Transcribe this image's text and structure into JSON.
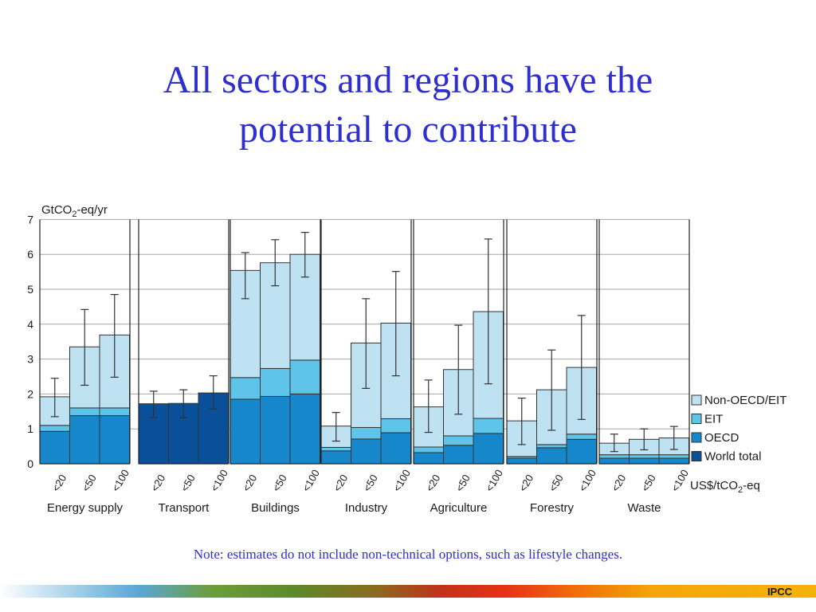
{
  "slide": {
    "title_line1": "All sectors and regions have the",
    "title_line2": "potential to contribute",
    "note": "Note: estimates do not include non-technical options, such as lifestyle changes.",
    "footer": "IPCC"
  },
  "chart_data": {
    "type": "bar",
    "stacked": true,
    "ylabel": "GtCO2-eq/yr",
    "xunit_label": "US$/tCO2-eq",
    "ylim": [
      0,
      7
    ],
    "yticks": [
      "0",
      "1",
      "2",
      "3",
      "4",
      "5",
      "6",
      "7"
    ],
    "grid": true,
    "legend_position": "right",
    "legend": [
      {
        "name": "Non-OECD/EIT",
        "color": "#bfe2f3"
      },
      {
        "name": "EIT",
        "color": "#5ec4ea"
      },
      {
        "name": "OECD",
        "color": "#1787cc"
      },
      {
        "name": "World total",
        "color": "#0a4f9a"
      }
    ],
    "colors": {
      "nonoecd": "#bfe2f3",
      "eit": "#5ec4ea",
      "oecd": "#1787cc",
      "world": "#0a4f9a"
    },
    "sectors": [
      {
        "name": "Energy supply",
        "bars": [
          {
            "label": "<20",
            "oecd": 0.93,
            "eit": 0.17,
            "nonoecd": 0.82,
            "err": [
              1.35,
              2.45
            ]
          },
          {
            "label": "<50",
            "oecd": 1.38,
            "eit": 0.22,
            "nonoecd": 1.75,
            "err": [
              2.25,
              4.42
            ]
          },
          {
            "label": "<100",
            "oecd": 1.38,
            "eit": 0.22,
            "nonoecd": 2.09,
            "err": [
              2.48,
              4.85
            ]
          }
        ]
      },
      {
        "name": "Transport",
        "bars": [
          {
            "label": "<20",
            "world": 1.72,
            "err": [
              1.32,
              2.08
            ]
          },
          {
            "label": "<50",
            "world": 1.73,
            "err": [
              1.32,
              2.12
            ]
          },
          {
            "label": "<100",
            "world": 2.03,
            "err": [
              1.57,
              2.52
            ]
          }
        ]
      },
      {
        "name": "Buildings",
        "bars": [
          {
            "label": "<20",
            "oecd": 1.85,
            "eit": 0.62,
            "nonoecd": 3.07,
            "err": [
              4.73,
              6.05
            ]
          },
          {
            "label": "<50",
            "oecd": 1.93,
            "eit": 0.8,
            "nonoecd": 3.03,
            "err": [
              5.1,
              6.42
            ]
          },
          {
            "label": "<100",
            "oecd": 2.0,
            "eit": 0.97,
            "nonoecd": 3.03,
            "err": [
              5.35,
              6.63
            ]
          }
        ]
      },
      {
        "name": "Industry",
        "bars": [
          {
            "label": "<20",
            "oecd": 0.37,
            "eit": 0.1,
            "nonoecd": 0.61,
            "err": [
              0.65,
              1.47
            ]
          },
          {
            "label": "<50",
            "oecd": 0.71,
            "eit": 0.33,
            "nonoecd": 2.42,
            "err": [
              2.16,
              4.73
            ]
          },
          {
            "label": "<100",
            "oecd": 0.89,
            "eit": 0.4,
            "nonoecd": 2.74,
            "err": [
              2.52,
              5.51
            ]
          }
        ]
      },
      {
        "name": "Agriculture",
        "bars": [
          {
            "label": "<20",
            "oecd": 0.32,
            "eit": 0.16,
            "nonoecd": 1.15,
            "err": [
              0.9,
              2.4
            ]
          },
          {
            "label": "<50",
            "oecd": 0.53,
            "eit": 0.27,
            "nonoecd": 1.9,
            "err": [
              1.42,
              3.97
            ]
          },
          {
            "label": "<100",
            "oecd": 0.87,
            "eit": 0.43,
            "nonoecd": 3.06,
            "err": [
              2.29,
              6.44
            ]
          }
        ]
      },
      {
        "name": "Forestry",
        "bars": [
          {
            "label": "<20",
            "oecd": 0.16,
            "eit": 0.05,
            "nonoecd": 1.02,
            "err": [
              0.55,
              1.88
            ]
          },
          {
            "label": "<50",
            "oecd": 0.46,
            "eit": 0.09,
            "nonoecd": 1.57,
            "err": [
              0.96,
              3.26
            ]
          },
          {
            "label": "<100",
            "oecd": 0.7,
            "eit": 0.15,
            "nonoecd": 1.91,
            "err": [
              1.27,
              4.25
            ]
          }
        ]
      },
      {
        "name": "Waste",
        "bars": [
          {
            "label": "<20",
            "oecd": 0.16,
            "eit": 0.1,
            "nonoecd": 0.33,
            "err": [
              0.35,
              0.85
            ]
          },
          {
            "label": "<50",
            "oecd": 0.16,
            "eit": 0.1,
            "nonoecd": 0.44,
            "err": [
              0.4,
              1.0
            ]
          },
          {
            "label": "<100",
            "oecd": 0.16,
            "eit": 0.1,
            "nonoecd": 0.48,
            "err": [
              0.41,
              1.07
            ]
          }
        ]
      }
    ]
  }
}
